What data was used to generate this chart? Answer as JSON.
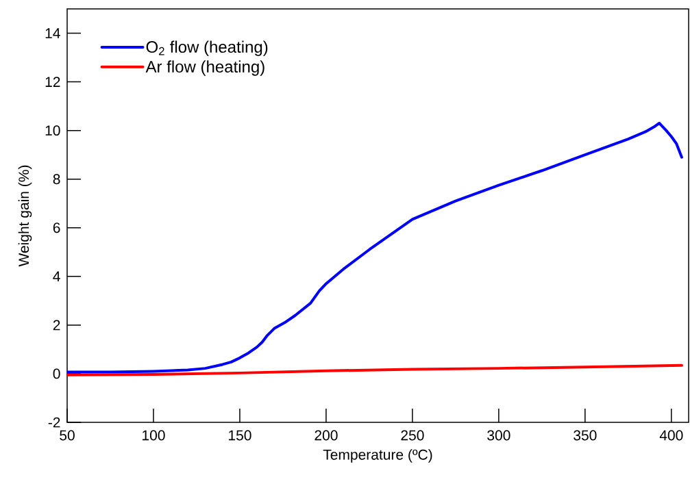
{
  "chart_data": {
    "type": "line",
    "xlabel": "Temperature (ºC)",
    "ylabel": "Weight gain (%)",
    "xlim": [
      50,
      410
    ],
    "ylim": [
      -2,
      15
    ],
    "xticks": [
      50,
      100,
      150,
      200,
      250,
      300,
      350,
      400
    ],
    "yticks": [
      -2,
      0,
      2,
      4,
      6,
      8,
      10,
      12,
      14
    ],
    "legend": "top left",
    "series": [
      {
        "name": "O$_{2}$ flow (heating)",
        "color": "#0000ff",
        "x": [
          50,
          75,
          100,
          120,
          130,
          140,
          145,
          150,
          155,
          160,
          163,
          166,
          170,
          176,
          182,
          191,
          196,
          200,
          210,
          225,
          250,
          275,
          300,
          325,
          350,
          375,
          385,
          390,
          393,
          397,
          400,
          403,
          406
        ],
        "values": [
          0.07,
          0.07,
          0.1,
          0.15,
          0.22,
          0.38,
          0.48,
          0.65,
          0.85,
          1.1,
          1.3,
          1.58,
          1.86,
          2.1,
          2.39,
          2.9,
          3.4,
          3.7,
          4.3,
          5.1,
          6.35,
          7.1,
          7.75,
          8.35,
          9.0,
          9.65,
          9.95,
          10.15,
          10.3,
          10.0,
          9.75,
          9.45,
          8.9
        ]
      },
      {
        "name": "Ar flow (heating)",
        "color": "#ff0000",
        "x": [
          50,
          100,
          150,
          200,
          250,
          300,
          350,
          406
        ],
        "values": [
          -0.05,
          -0.03,
          0.03,
          0.12,
          0.18,
          0.22,
          0.27,
          0.34
        ]
      }
    ]
  }
}
